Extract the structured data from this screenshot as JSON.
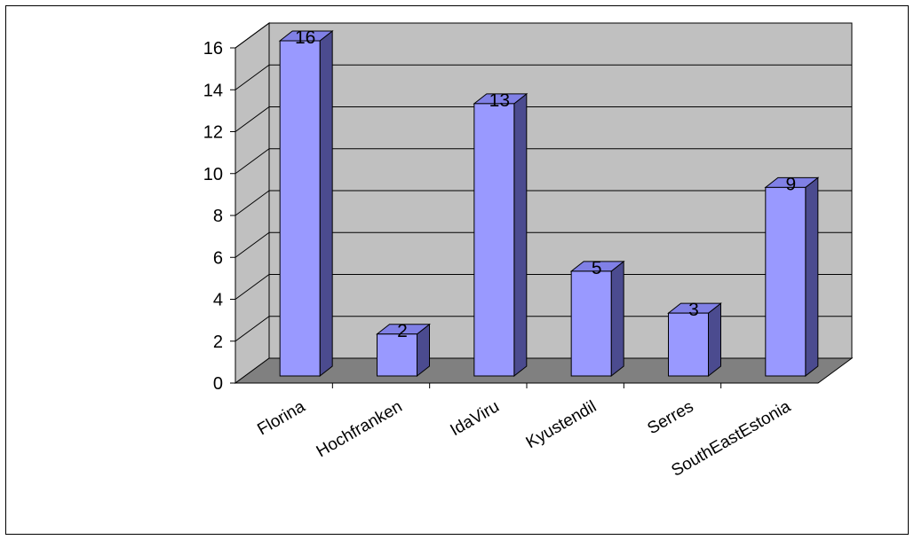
{
  "chart_data": {
    "type": "bar",
    "title": "",
    "xlabel": "",
    "ylabel": "",
    "categories": [
      "Florina",
      "Hochfranken",
      "IdaViru",
      "Kyustendil",
      "Serres",
      "SouthEastEstonia"
    ],
    "values": [
      16,
      2,
      13,
      5,
      3,
      9
    ],
    "data_labels": [
      "16",
      "2",
      "13",
      "5",
      "3",
      "9"
    ],
    "ylim": [
      0,
      16
    ],
    "yticks": [
      0,
      2,
      4,
      6,
      8,
      10,
      12,
      14,
      16
    ],
    "ytick_labels": [
      "0",
      "2",
      "4",
      "6",
      "8",
      "10",
      "12",
      "14",
      "16"
    ],
    "grid": true,
    "legend": "none",
    "style": "3d-column",
    "colors": {
      "bar_front": "#9999ff",
      "bar_side": "#4b4b8f",
      "bar_top": "#8080e6",
      "back_wall": "#c0c0c0",
      "side_wall": "#c0c0c0",
      "floor": "#808080",
      "gridline": "#000000"
    }
  }
}
